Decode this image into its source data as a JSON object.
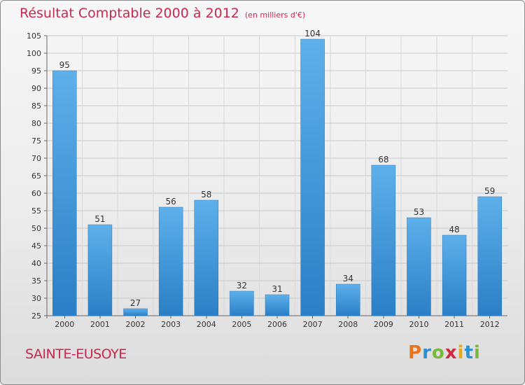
{
  "chart_data": {
    "type": "bar",
    "title": "Résultat Comptable 2000 à 2012",
    "subtitle": "(en milliers d'€)",
    "categories": [
      "2000",
      "2001",
      "2002",
      "2003",
      "2004",
      "2005",
      "2006",
      "2007",
      "2008",
      "2009",
      "2010",
      "2011",
      "2012"
    ],
    "values": [
      95,
      51,
      27,
      56,
      58,
      32,
      31,
      104,
      34,
      68,
      53,
      48,
      59
    ],
    "ylim": [
      25,
      105
    ],
    "yticks": [
      25,
      30,
      35,
      40,
      45,
      50,
      55,
      60,
      65,
      70,
      75,
      80,
      85,
      90,
      95,
      100,
      105
    ],
    "xlabel": "",
    "ylabel": "",
    "grid": true,
    "bar_color": "#3a8fd6"
  },
  "footer": {
    "place": "SAINTE-EUSOYE",
    "brand_letters": [
      "P",
      "r",
      "o",
      "x",
      "i",
      "t",
      "i"
    ],
    "brand_colors": [
      "#e8731c",
      "#2c8fd0",
      "#7ab83a",
      "#d0283c",
      "#e8a81c",
      "#2c8fd0",
      "#7ab83a"
    ]
  },
  "colors": {
    "title": "#c8284f",
    "grid": "#c8c8c8"
  }
}
